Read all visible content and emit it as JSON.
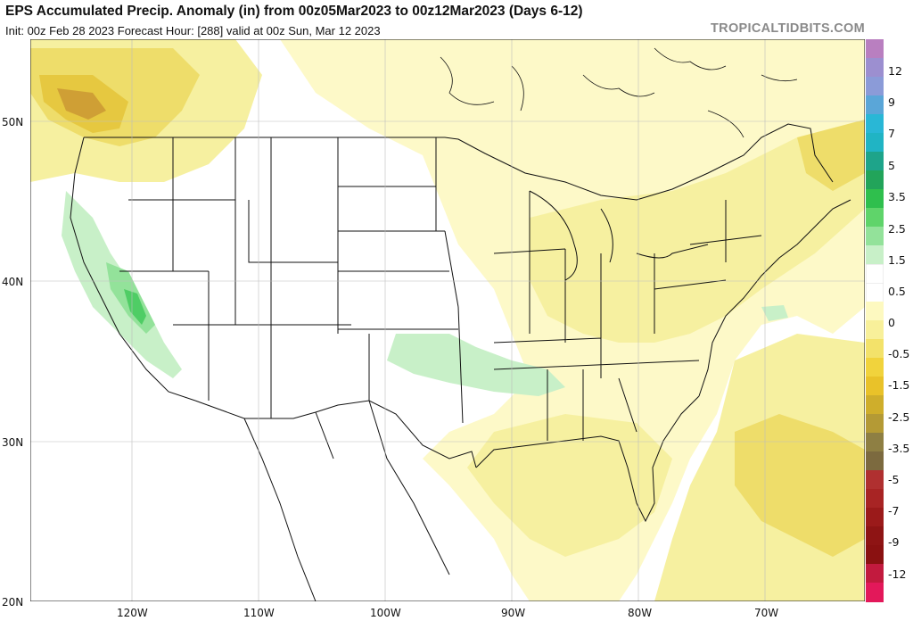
{
  "header": {
    "title": "EPS Accumulated Precip. Anomaly (in) from 00z05Mar2023 to 00z12Mar2023 (Days 6-12)",
    "subtitle": "Init: 00z Feb 28 2023   Forecast Hour: [288]   valid at 00z Sun, Mar 12 2023",
    "brand": "TROPICALTIDBITS.COM"
  },
  "axes": {
    "lat_labels": [
      "50N",
      "40N",
      "30N",
      "20N"
    ],
    "lon_labels": [
      "120W",
      "110W",
      "100W",
      "90W",
      "80W",
      "70W"
    ]
  },
  "colorbar": {
    "labels": [
      "12",
      "9",
      "7",
      "5",
      "3.5",
      "2.5",
      "1.5",
      "0.5",
      "0",
      "-0.5",
      "-1.5",
      "-2.5",
      "-3.5",
      "-5",
      "-7",
      "-9",
      "-12"
    ],
    "colors": [
      "#b97fc0",
      "#9c8fd0",
      "#8b9bd8",
      "#5aa6d8",
      "#29b7d6",
      "#20b4c4",
      "#1ea48a",
      "#22a45a",
      "#2fbf4d",
      "#5fd46a",
      "#93e29a",
      "#c8f0c8",
      "#ffffff",
      "#ffffff",
      "#fdf9c0",
      "#f8f09a",
      "#f3e26a",
      "#f1d33c",
      "#e9c229",
      "#cfae2b",
      "#b49a35",
      "#8e7f43",
      "#7c6a3f",
      "#b03030",
      "#a82424",
      "#9b1a1a",
      "#8e1414",
      "#8a1111",
      "#c21a3e",
      "#e3185a"
    ]
  },
  "map": {
    "land_color": "#ffffff",
    "border_color": "#111111",
    "anomaly_colors": {
      "dry_light": "#fdf9c8",
      "dry_mid": "#f6f0a0",
      "dry_dark": "#eedd6a",
      "dry_darker": "#e6c840",
      "dry_brown": "#cf9f35",
      "wet_light": "#c8f0c8",
      "wet_mid": "#93e29a",
      "wet_dark": "#4fcd65",
      "wet_darker": "#2aa84d"
    }
  }
}
